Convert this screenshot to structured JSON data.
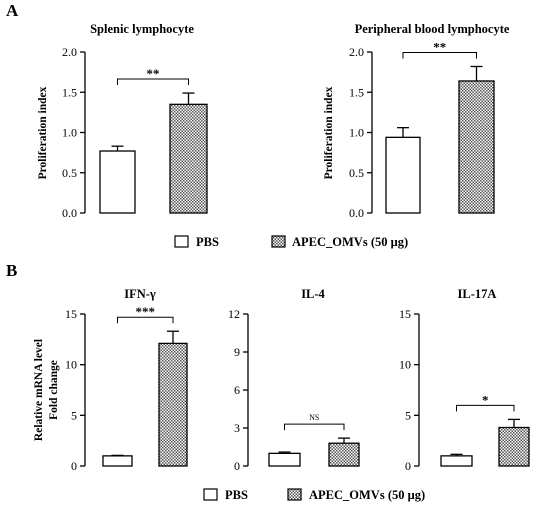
{
  "panels": {
    "a": "A",
    "b": "B"
  },
  "legend": {
    "pbs": "PBS",
    "omv": "APEC_OMVs (50 μg)"
  },
  "colors": {
    "pbs_fill": "#ffffff",
    "hatch": "#555555",
    "stroke": "#000000"
  },
  "chart_data": [
    {
      "type": "bar",
      "title": "Splenic lymphocyte",
      "ylabel": "Proliferation index",
      "ylim": [
        0,
        2.0
      ],
      "yticks": [
        "0.0",
        "0.5",
        "1.0",
        "1.5",
        "2.0"
      ],
      "categories": [
        "PBS",
        "APEC_OMVs (50 μg)"
      ],
      "values": [
        0.77,
        1.35
      ],
      "errors": [
        0.06,
        0.14
      ],
      "significance": "**"
    },
    {
      "type": "bar",
      "title": "Peripheral blood lymphocyte",
      "ylabel": "Proliferation index",
      "ylim": [
        0,
        2.0
      ],
      "yticks": [
        "0.0",
        "0.5",
        "1.0",
        "1.5",
        "2.0"
      ],
      "categories": [
        "PBS",
        "APEC_OMVs (50 μg)"
      ],
      "values": [
        0.94,
        1.64
      ],
      "errors": [
        0.12,
        0.18
      ],
      "significance": "**"
    },
    {
      "type": "bar",
      "title": "IFN-γ",
      "ylabel": "Relative mRNA level\nFold change",
      "ylim": [
        0,
        15
      ],
      "yticks": [
        "0",
        "5",
        "10",
        "15"
      ],
      "categories": [
        "PBS",
        "APEC_OMVs (50 μg)"
      ],
      "values": [
        1.0,
        12.1
      ],
      "errors": [
        0.05,
        1.2
      ],
      "significance": "***"
    },
    {
      "type": "bar",
      "title": "IL-4",
      "ylabel": "",
      "ylim": [
        0,
        12
      ],
      "yticks": [
        "0",
        "3",
        "6",
        "9",
        "12"
      ],
      "categories": [
        "PBS",
        "APEC_OMVs (50 μg)"
      ],
      "values": [
        1.0,
        1.8
      ],
      "errors": [
        0.1,
        0.4
      ],
      "significance": "NS"
    },
    {
      "type": "bar",
      "title": "IL-17A",
      "ylabel": "",
      "ylim": [
        0,
        15
      ],
      "yticks": [
        "0",
        "5",
        "10",
        "15"
      ],
      "categories": [
        "PBS",
        "APEC_OMVs (50 μg)"
      ],
      "values": [
        1.0,
        3.8
      ],
      "errors": [
        0.15,
        0.8
      ],
      "significance": "*"
    }
  ]
}
